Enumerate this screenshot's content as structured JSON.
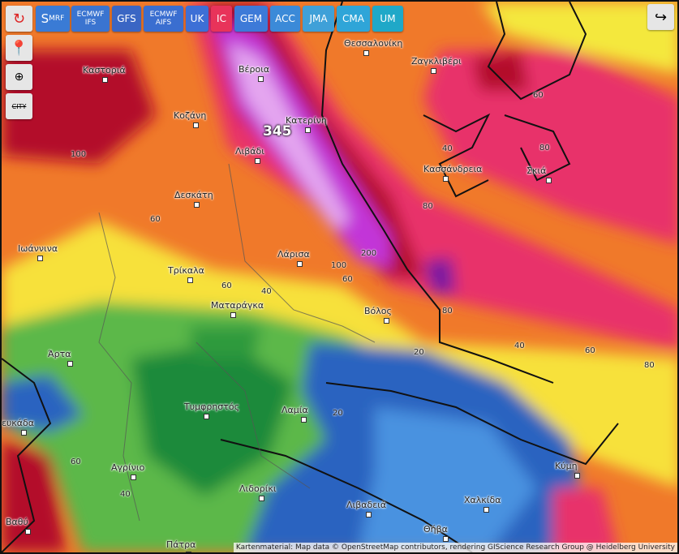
{
  "toolbar": {
    "models": [
      {
        "lines": [
          "S",
          "MRF"
        ]
      },
      {
        "lines": [
          "ECMWF",
          "IFS"
        ]
      },
      {
        "lines": [
          "GFS"
        ]
      },
      {
        "lines": [
          "ECMWF",
          "AIFS"
        ]
      },
      {
        "lines": [
          "UK"
        ]
      },
      {
        "lines": [
          "IC"
        ]
      },
      {
        "lines": [
          "GEM"
        ]
      },
      {
        "lines": [
          "ACC"
        ]
      },
      {
        "lines": [
          "JMA"
        ]
      },
      {
        "lines": [
          "CMA"
        ]
      },
      {
        "lines": [
          "UM"
        ]
      }
    ],
    "city_button": "CITY"
  },
  "map": {
    "max_label": "345",
    "cities": [
      "Θεσσαλονίκη",
      "Ζαγκλιβέρι",
      "Καστοριά",
      "Βέροια",
      "Κοζάνη",
      "Κατερίνη",
      "Λιβάδι",
      "Κασσάνδρεια",
      "Σκιά",
      "Δεσκάτη",
      "Ιωάννινα",
      "Τρίκαλα",
      "Λάρισα",
      "Ματαράγκα",
      "Βόλος",
      "Άρτα",
      "Τυμφρηστός",
      "Λαμία",
      "ευκάδα",
      "Αγρίνιο",
      "Κύμη",
      "Λιδορίκι",
      "Χαλκίδα",
      "Λιβαδειά",
      "Θήβα",
      "Βαθύ",
      "Πάτρα"
    ],
    "contour_labels": [
      100,
      60,
      60,
      40,
      100,
      200,
      60,
      80,
      40,
      80,
      60,
      80,
      40,
      60,
      80,
      20,
      20,
      60,
      40
    ]
  },
  "attribution": "Kartenmaterial: Map data © OpenStreetMap contributors, rendering GIScience Research Group @ Heidelberg University"
}
